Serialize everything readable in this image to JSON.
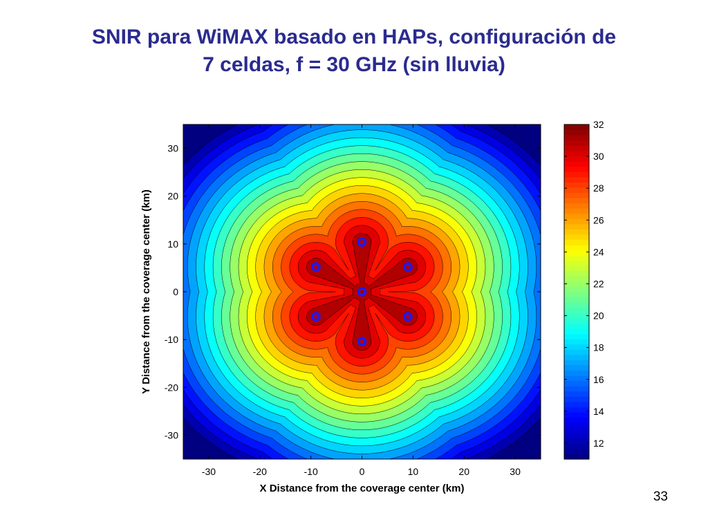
{
  "slide": {
    "title_line1": "SNIR para WiMAX basado en HAPs, configuración de",
    "title_line2": "7 celdas, f = 30 GHz (sin lluvia)",
    "page_number": "33"
  },
  "chart_data": {
    "type": "heatmap",
    "xlabel": "X Distance  from the coverage center (km)",
    "ylabel": "Y Distance  from the coverage center (km)",
    "xlim": [
      -35,
      35
    ],
    "ylim": [
      -35,
      35
    ],
    "xticks": [
      -30,
      -20,
      -10,
      0,
      10,
      20,
      30
    ],
    "yticks": [
      -30,
      -20,
      -10,
      0,
      10,
      20,
      30
    ],
    "colorbar": {
      "range": [
        11,
        32
      ],
      "ticks": [
        12,
        14,
        16,
        18,
        20,
        22,
        24,
        26,
        28,
        30,
        32
      ],
      "colormap": "jet"
    },
    "cell_centers": [
      {
        "x": 0,
        "y": 0
      },
      {
        "x": 0,
        "y": 10.4
      },
      {
        "x": 9,
        "y": 5.2
      },
      {
        "x": 9,
        "y": -5.2
      },
      {
        "x": 0,
        "y": -10.4
      },
      {
        "x": -9,
        "y": -5.2
      },
      {
        "x": -9,
        "y": 5.2
      }
    ],
    "colors": {
      "marker": "#1a1aff",
      "title": "#2b2b8f"
    }
  }
}
